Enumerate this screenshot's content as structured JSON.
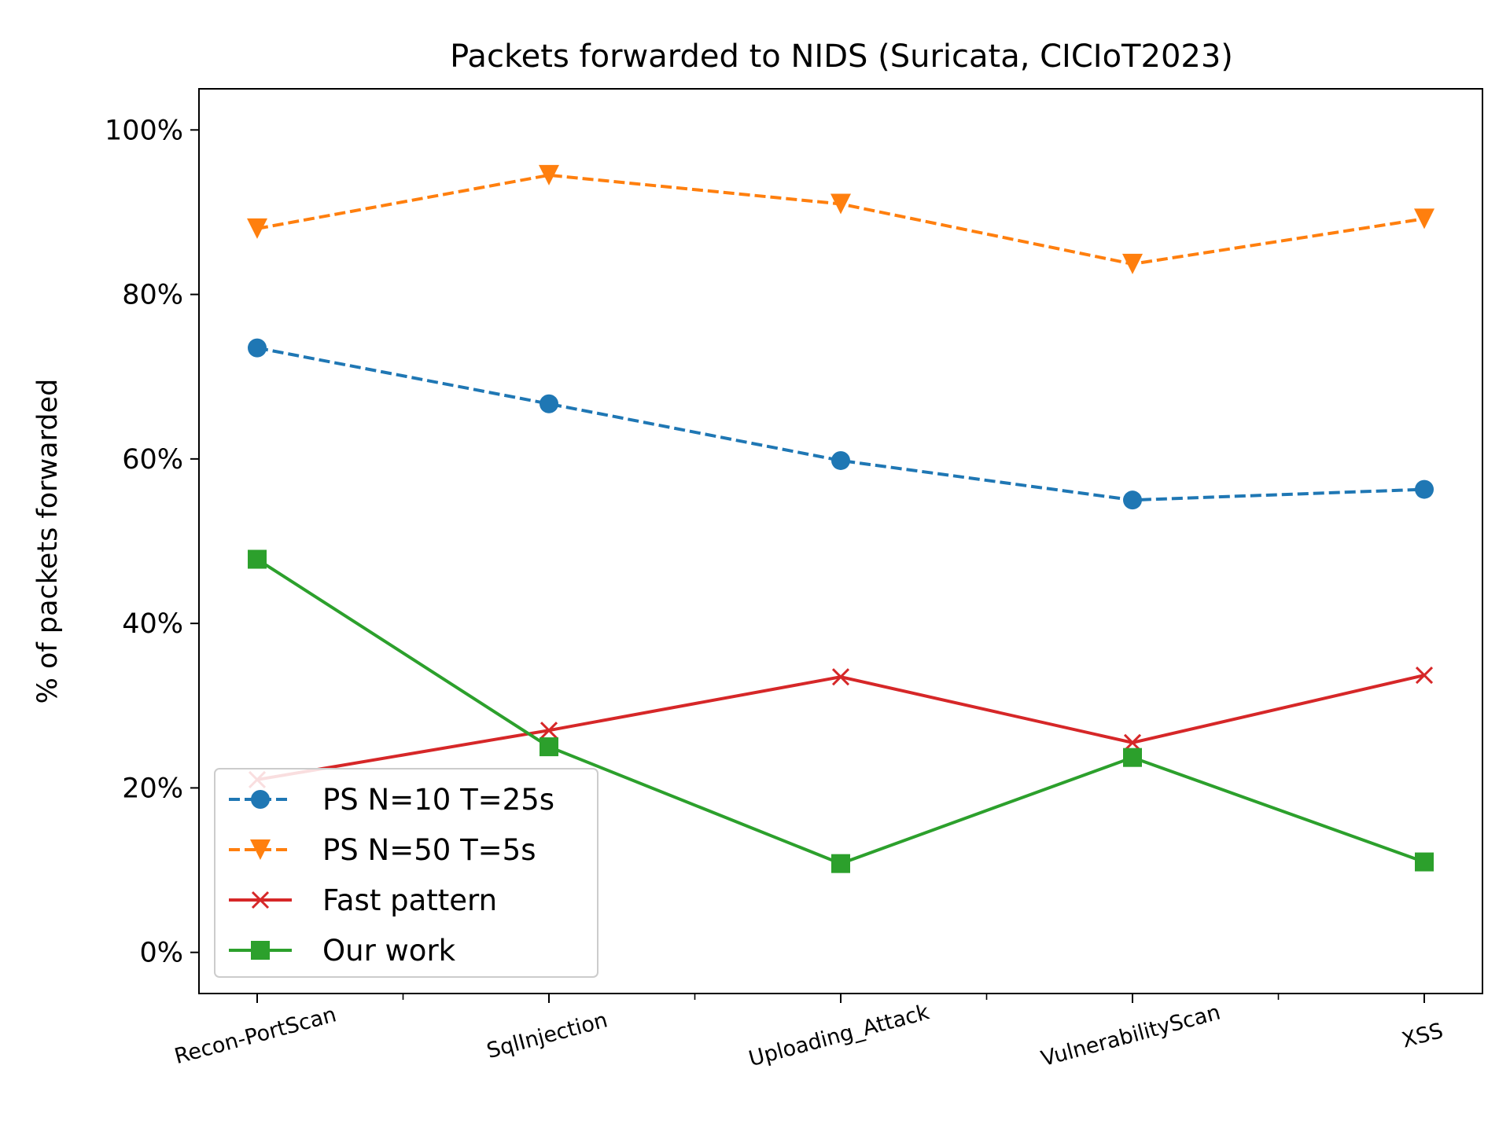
{
  "chart_data": {
    "type": "line",
    "title": "Packets forwarded to NIDS (Suricata, CICIoT2023)",
    "xlabel": "",
    "ylabel": "% of packets forwarded",
    "categories": [
      "Recon-PortScan",
      "SqlInjection",
      "Uploading_Attack",
      "VulnerabilityScan",
      "XSS"
    ],
    "ylim": [
      -5,
      105
    ],
    "yticks": [
      0,
      20,
      40,
      60,
      80,
      100
    ],
    "ytick_labels": [
      "0%",
      "20%",
      "40%",
      "60%",
      "80%",
      "100%"
    ],
    "grid": false,
    "legend_position": "lower-left",
    "series": [
      {
        "name": "PS N=10 T=25s",
        "values": [
          73.5,
          66.7,
          59.8,
          55.0,
          56.3
        ],
        "color": "#1f77b4",
        "line_style": "dashed",
        "marker": "circle"
      },
      {
        "name": "PS N=50 T=5s",
        "values": [
          88.0,
          94.5,
          91.0,
          83.7,
          89.2
        ],
        "color": "#ff7f0e",
        "line_style": "dashed",
        "marker": "triangle-down"
      },
      {
        "name": "Fast pattern",
        "values": [
          21.0,
          27.0,
          33.5,
          25.5,
          33.7
        ],
        "color": "#d62728",
        "line_style": "solid",
        "marker": "x"
      },
      {
        "name": "Our work",
        "values": [
          47.8,
          25.0,
          10.8,
          23.7,
          11.0
        ],
        "color": "#2ca02c",
        "line_style": "solid",
        "marker": "square"
      }
    ]
  }
}
